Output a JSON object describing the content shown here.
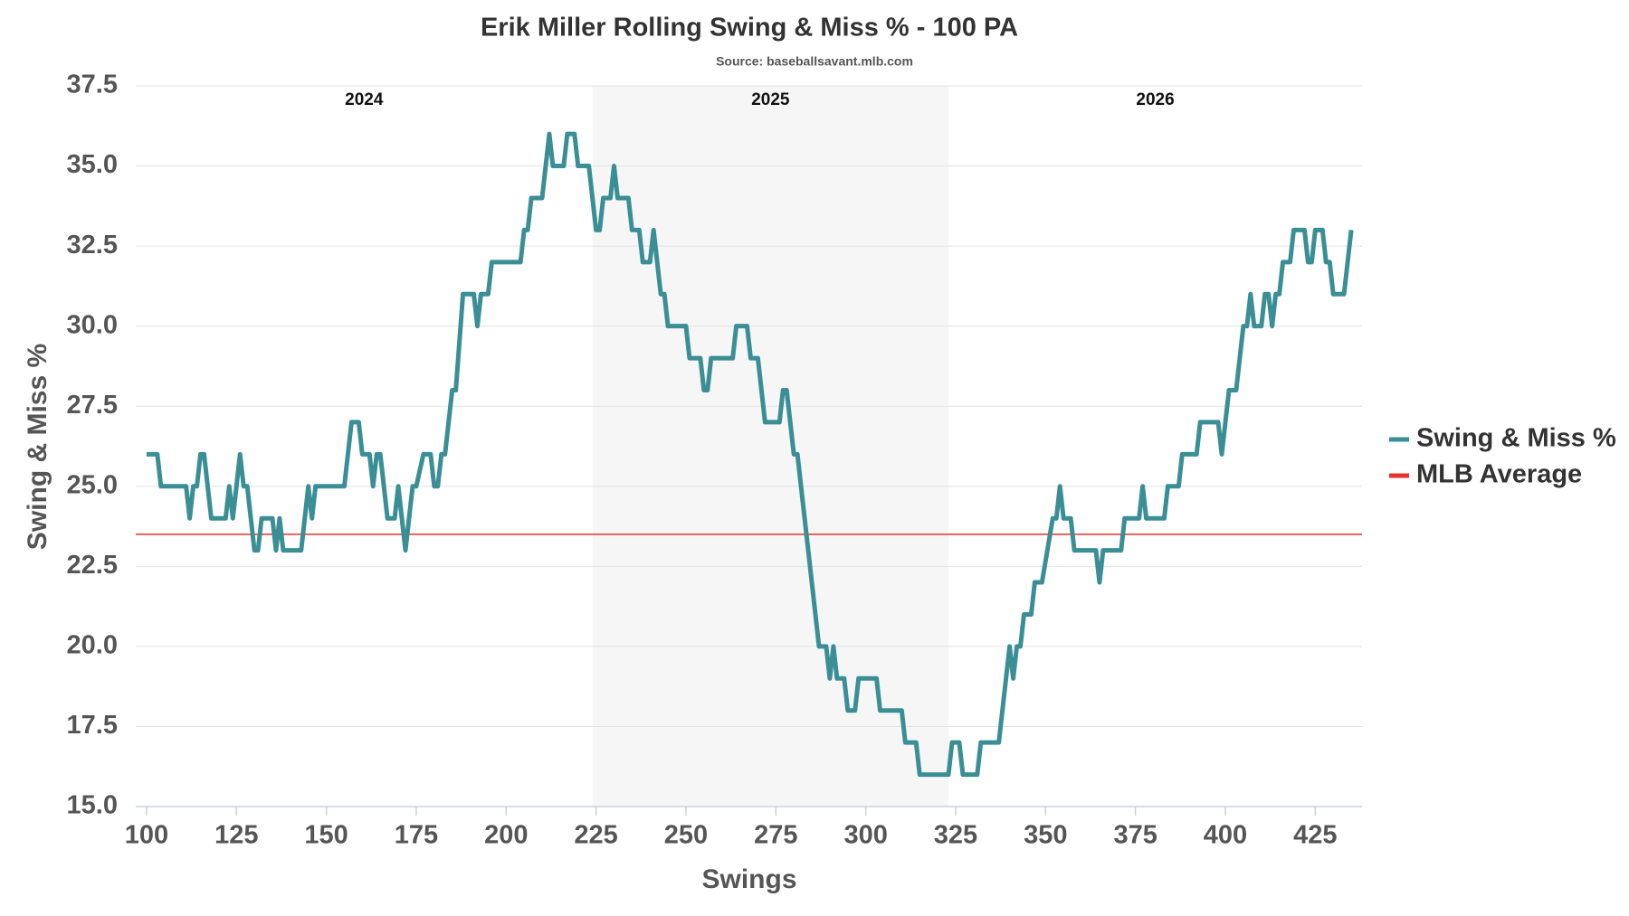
{
  "chart_data": {
    "type": "line",
    "title": "Erik Miller Rolling Swing & Miss % - 100 PA",
    "subtitle": "Source: baseballsavant.mlb.com",
    "x_label": "Swings",
    "y_label": "Swing & Miss %",
    "xlim": [
      97,
      438
    ],
    "ylim": [
      15,
      37.5
    ],
    "xticks": [
      100,
      125,
      150,
      175,
      200,
      225,
      250,
      275,
      300,
      325,
      350,
      375,
      400,
      425
    ],
    "yticks": [
      {
        "value": 15,
        "label": "15.0"
      },
      17.5,
      {
        "value": 20,
        "label": "20.0"
      },
      22.5,
      {
        "value": 25,
        "label": "25.0"
      },
      27.5,
      {
        "value": 30,
        "label": "30.0"
      },
      32.5,
      {
        "value": 35,
        "label": "35.0"
      },
      37.5
    ],
    "grid": true,
    "legend": "right",
    "bands": [
      {
        "label": "2024",
        "x": [
          97,
          224
        ],
        "shaded": false
      },
      {
        "label": "2025",
        "x": [
          224,
          323
        ],
        "shaded": true
      },
      {
        "label": "2026",
        "x": [
          323,
          438
        ],
        "shaded": false
      }
    ],
    "series": [
      {
        "name": "Swing & Miss %",
        "color": "#3a8f96",
        "x": [
          100,
          103,
          104,
          111,
          112,
          113,
          114,
          115,
          116,
          118,
          122,
          123,
          124,
          126,
          127,
          128,
          130,
          131,
          132,
          135,
          136,
          137,
          138,
          143,
          145,
          146,
          147,
          155,
          157,
          159,
          160,
          162,
          163,
          164,
          165,
          167,
          169,
          170,
          171,
          172,
          174,
          175,
          177,
          179,
          180,
          181,
          182,
          183,
          185,
          186,
          188,
          191,
          192,
          193,
          195,
          196,
          204,
          205,
          206,
          207,
          210,
          212,
          213,
          216,
          217,
          219,
          220,
          223,
          225,
          226,
          227,
          229,
          230,
          231,
          234,
          235,
          237,
          238,
          240,
          241,
          243,
          244,
          245,
          250,
          251,
          254,
          255,
          256,
          257,
          263,
          264,
          267,
          268,
          270,
          272,
          276,
          277,
          278,
          280,
          281,
          284,
          287,
          289,
          290,
          291,
          292,
          294,
          295,
          297,
          298,
          303,
          304,
          310,
          311,
          314,
          315,
          323,
          324,
          326,
          327,
          331,
          332,
          337,
          340,
          341,
          342,
          343,
          344,
          346,
          347,
          349,
          352,
          353,
          354,
          355,
          357,
          358,
          364,
          365,
          366,
          371,
          372,
          376,
          377,
          378,
          383,
          384,
          387,
          388,
          392,
          393,
          398,
          399,
          400,
          401,
          403,
          405,
          406,
          407,
          408,
          410,
          411,
          412,
          413,
          414,
          415,
          416,
          418,
          419,
          422,
          423,
          424,
          425,
          427,
          428,
          429,
          430,
          433,
          435
        ],
        "values": [
          26,
          26,
          25,
          25,
          24,
          25,
          25,
          26,
          26,
          24,
          24,
          25,
          24,
          26,
          25,
          25,
          23,
          23,
          24,
          24,
          23,
          24,
          23,
          23,
          25,
          24,
          25,
          25,
          27,
          27,
          26,
          26,
          25,
          26,
          26,
          24,
          24,
          25,
          24,
          23,
          25,
          25,
          26,
          26,
          25,
          25,
          26,
          26,
          28,
          28,
          31,
          31,
          30,
          31,
          31,
          32,
          32,
          33,
          33,
          34,
          34,
          36,
          35,
          35,
          36,
          36,
          35,
          35,
          33,
          33,
          34,
          34,
          35,
          34,
          34,
          33,
          33,
          32,
          32,
          33,
          31,
          31,
          30,
          30,
          29,
          29,
          28,
          28,
          29,
          29,
          30,
          30,
          29,
          29,
          27,
          27,
          28,
          28,
          26,
          26,
          23,
          20,
          20,
          19,
          20,
          19,
          19,
          18,
          18,
          19,
          19,
          18,
          18,
          17,
          17,
          16,
          16,
          17,
          17,
          16,
          16,
          17,
          17,
          20,
          19,
          20,
          20,
          21,
          21,
          22,
          22,
          24,
          24,
          25,
          24,
          24,
          23,
          23,
          22,
          23,
          23,
          24,
          24,
          25,
          24,
          24,
          25,
          25,
          26,
          26,
          27,
          27,
          26,
          27,
          28,
          28,
          30,
          30,
          31,
          30,
          30,
          31,
          31,
          30,
          31,
          31,
          32,
          32,
          33,
          33,
          32,
          32,
          33,
          33,
          32,
          32,
          31,
          31,
          33
        ]
      }
    ],
    "reference_lines": [
      {
        "name": "MLB Average",
        "color": "#e8332a",
        "value": 23.5
      }
    ]
  }
}
